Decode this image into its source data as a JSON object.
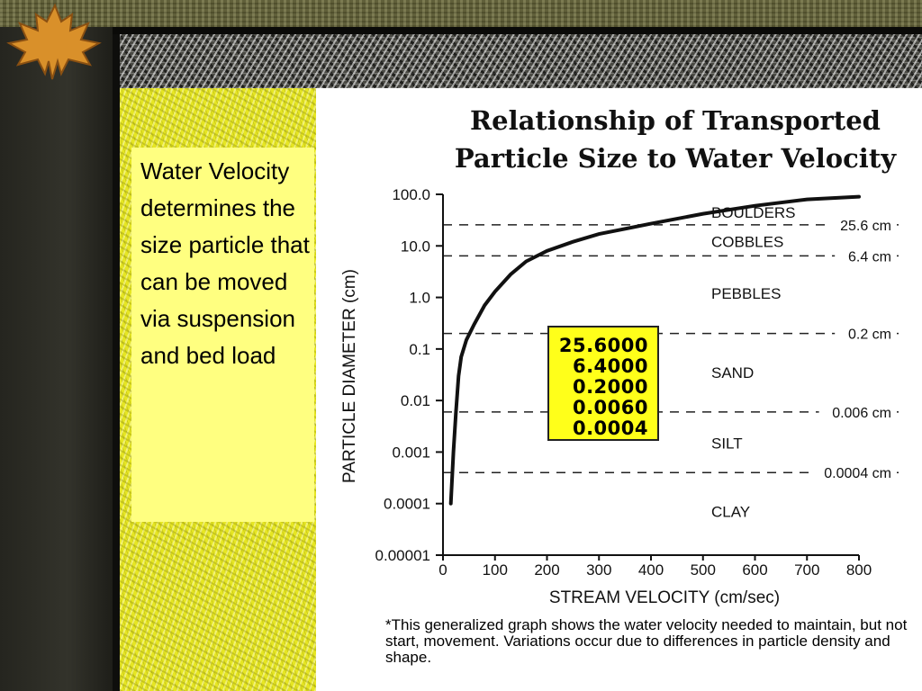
{
  "slide": {
    "body_text": "Water Velocity determines the size particle that can be moved via suspension and bed load",
    "colors": {
      "frame_dark": "#2b2b24",
      "panel_yellow": "#e6e622",
      "text_box": "#ffff80",
      "values_box": "#ffff1a",
      "leaf": "#d9902a"
    },
    "decor_icon": "maple-leaf-icon"
  },
  "chart_data": {
    "type": "line",
    "title": "Relationship of Transported Particle Size to Water Velocity",
    "title_lines": [
      "Relationship of Transported",
      "Particle Size to Water Velocity"
    ],
    "xlabel": "STREAM VELOCITY (cm/sec)",
    "ylabel": "PARTICLE DIAMETER (cm)",
    "xlim": [
      0,
      800
    ],
    "ylim": [
      1e-05,
      100.0
    ],
    "y_scale": "log",
    "x_ticks": [
      0,
      100,
      200,
      300,
      400,
      500,
      600,
      700,
      800
    ],
    "x_tick_labels": [
      "0",
      "100",
      "200",
      "300",
      "400",
      "500",
      "600",
      "700",
      "800"
    ],
    "y_ticks": [
      100.0,
      10.0,
      1.0,
      0.1,
      0.01,
      0.001,
      0.0001,
      1e-05
    ],
    "y_tick_labels": [
      "100.0",
      "10.0",
      "1.0",
      "0.1",
      "0.01",
      "0.001",
      "0.0001",
      "0.00001"
    ],
    "grid": false,
    "series": [
      {
        "x": [
          15,
          20,
          25,
          30,
          35,
          45,
          60,
          80,
          100,
          130,
          160,
          200,
          250,
          300,
          400,
          500,
          600,
          700,
          800
        ],
        "y": [
          0.0001,
          0.001,
          0.006,
          0.03,
          0.07,
          0.15,
          0.3,
          0.7,
          1.3,
          2.8,
          5,
          8,
          12,
          17,
          27,
          42,
          60,
          80,
          90
        ]
      }
    ],
    "thresholds": [
      {
        "value": 25.6,
        "label": "25.6 cm"
      },
      {
        "value": 6.4,
        "label": "6.4 cm"
      },
      {
        "value": 0.2,
        "label": "0.2 cm"
      },
      {
        "value": 0.006,
        "label": "0.006 cm"
      },
      {
        "value": 0.0004,
        "label": "0.0004 cm"
      }
    ],
    "regions": [
      {
        "label": "BOULDERS",
        "y": 45
      },
      {
        "label": "COBBLES",
        "y": 12
      },
      {
        "label": "PEBBLES",
        "y": 1.2
      },
      {
        "label": "SAND",
        "y": 0.035
      },
      {
        "label": "SILT",
        "y": 0.0015
      },
      {
        "label": "CLAY",
        "y": 7e-05
      }
    ],
    "highlight_values": [
      "25.6000",
      "6.4000",
      "0.2000",
      "0.0060",
      "0.0004"
    ],
    "footnote": "*This generalized graph shows the water velocity needed to maintain, but not start, movement. Variations occur due to differences in particle density and shape."
  }
}
